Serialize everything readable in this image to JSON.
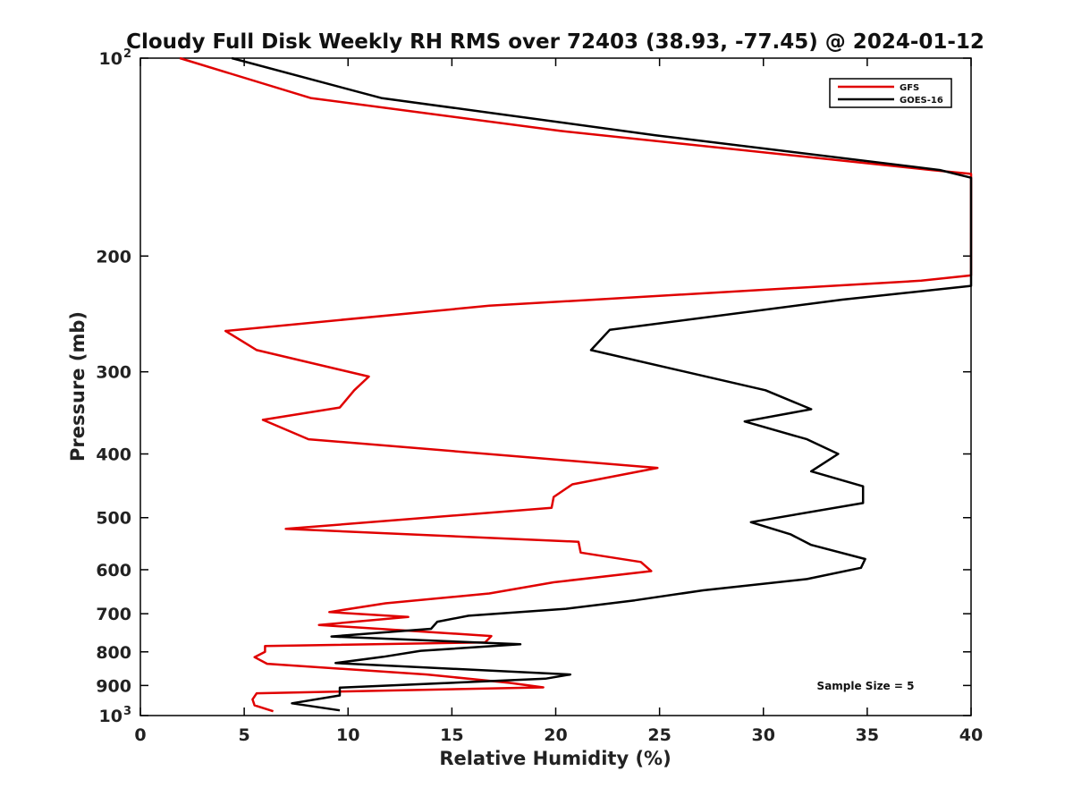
{
  "chart_data": {
    "type": "line",
    "title": "Cloudy Full Disk Weekly RH RMS over 72403 (38.93, -77.45) @ 2024-01-12",
    "xlabel": "Relative Humidity (%)",
    "ylabel": "Pressure (mb)",
    "xlim": [
      0,
      40
    ],
    "ylim": [
      100,
      1000
    ],
    "y_scale": "log",
    "y_reversed": true,
    "x_ticks": [
      0,
      5,
      10,
      15,
      20,
      25,
      30,
      35,
      40
    ],
    "x_tick_labels": [
      "0",
      "5",
      "10",
      "15",
      "20",
      "25",
      "30",
      "35",
      "40"
    ],
    "y_ticks": [
      {
        "value": 100,
        "label": "10",
        "sup": "2"
      },
      {
        "value": 200,
        "label": "200"
      },
      {
        "value": 300,
        "label": "300"
      },
      {
        "value": 400,
        "label": "400"
      },
      {
        "value": 500,
        "label": "500"
      },
      {
        "value": 600,
        "label": "600"
      },
      {
        "value": 700,
        "label": "700"
      },
      {
        "value": 800,
        "label": "800"
      },
      {
        "value": 900,
        "label": "900"
      },
      {
        "value": 1000,
        "label": "10",
        "sup": "3"
      }
    ],
    "grid": false,
    "legend_position": "top-right",
    "annotation": "Sample Size = 5",
    "series": [
      {
        "name": "GFS",
        "color": "#e00000",
        "points": [
          [
            1.9,
            100
          ],
          [
            8.2,
            115
          ],
          [
            20.2,
            129
          ],
          [
            38.1,
            148
          ],
          [
            40,
            150
          ],
          [
            40,
            214
          ],
          [
            37.6,
            218
          ],
          [
            16.8,
            238
          ],
          [
            4.1,
            260
          ],
          [
            5.6,
            278
          ],
          [
            11.0,
            305
          ],
          [
            10.3,
            320
          ],
          [
            9.6,
            340
          ],
          [
            5.9,
            355
          ],
          [
            8.1,
            380
          ],
          [
            24.9,
            420
          ],
          [
            20.8,
            445
          ],
          [
            19.9,
            465
          ],
          [
            19.8,
            483
          ],
          [
            7.0,
            520
          ],
          [
            21.1,
            544
          ],
          [
            21.2,
            565
          ],
          [
            24.1,
            584
          ],
          [
            24.6,
            603
          ],
          [
            19.9,
            627
          ],
          [
            16.8,
            652
          ],
          [
            11.8,
            675
          ],
          [
            9.1,
            696
          ],
          [
            12.9,
            708
          ],
          [
            8.6,
            728
          ],
          [
            16.9,
            757
          ],
          [
            16.6,
            774
          ],
          [
            6.0,
            784
          ],
          [
            6.0,
            800
          ],
          [
            5.5,
            815
          ],
          [
            6.1,
            834
          ],
          [
            13.8,
            866
          ],
          [
            17.8,
            892
          ],
          [
            19.4,
            906
          ],
          [
            5.6,
            925
          ],
          [
            5.4,
            945
          ],
          [
            5.5,
            965
          ],
          [
            6.4,
            985
          ]
        ]
      },
      {
        "name": "GOES-16",
        "color": "#000000",
        "points": [
          [
            4.4,
            100
          ],
          [
            11.6,
            115
          ],
          [
            24.8,
            131
          ],
          [
            38.5,
            148
          ],
          [
            40,
            152
          ],
          [
            40,
            222
          ],
          [
            33.8,
            233
          ],
          [
            22.6,
            259
          ],
          [
            21.7,
            278
          ],
          [
            30.1,
            320
          ],
          [
            32.3,
            342
          ],
          [
            29.1,
            357
          ],
          [
            32.1,
            380
          ],
          [
            33.6,
            400
          ],
          [
            32.3,
            425
          ],
          [
            34.8,
            448
          ],
          [
            34.8,
            475
          ],
          [
            29.4,
            508
          ],
          [
            31.3,
            530
          ],
          [
            32.3,
            550
          ],
          [
            34.9,
            578
          ],
          [
            34.7,
            596
          ],
          [
            32.1,
            620
          ],
          [
            27.1,
            645
          ],
          [
            23.8,
            668
          ],
          [
            20.5,
            688
          ],
          [
            15.8,
            705
          ],
          [
            14.3,
            720
          ],
          [
            14.0,
            738
          ],
          [
            9.2,
            758
          ],
          [
            18.3,
            779
          ],
          [
            13.5,
            797
          ],
          [
            11.7,
            814
          ],
          [
            9.4,
            832
          ],
          [
            20.7,
            866
          ],
          [
            19.5,
            879
          ],
          [
            9.6,
            907
          ],
          [
            9.6,
            932
          ],
          [
            7.3,
            958
          ],
          [
            9.6,
            982
          ]
        ]
      }
    ]
  }
}
